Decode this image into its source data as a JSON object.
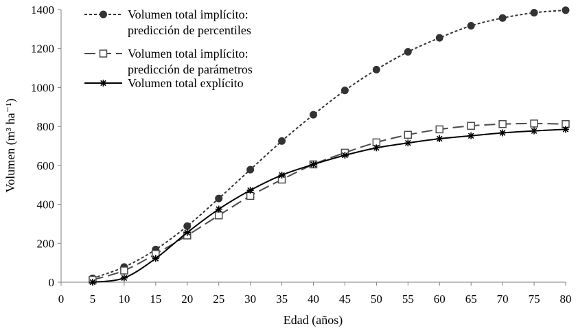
{
  "chart_data": {
    "type": "line",
    "title": "",
    "xlabel": "Edad (años)",
    "ylabel": "Volumen (m³ ha⁻¹)",
    "xlim": [
      0,
      80
    ],
    "ylim": [
      0,
      1400
    ],
    "xticks": [
      0,
      5,
      10,
      15,
      20,
      25,
      30,
      35,
      40,
      45,
      50,
      55,
      60,
      65,
      70,
      75,
      80
    ],
    "yticks": [
      0,
      200,
      400,
      600,
      800,
      1000,
      1200,
      1400
    ],
    "grid": false,
    "legend_position": "top-left",
    "x": [
      5,
      10,
      15,
      20,
      25,
      30,
      35,
      40,
      45,
      50,
      55,
      60,
      65,
      70,
      75,
      80
    ],
    "series": [
      {
        "name": "Volumen total implícito: predicción de percentiles",
        "legend_lines": [
          "Volumen total implícito:",
          "predicción de percentiles"
        ],
        "marker": "circle",
        "line_style": "dotted",
        "color": "#333333",
        "values": [
          20,
          78,
          168,
          288,
          430,
          578,
          725,
          860,
          985,
          1092,
          1183,
          1255,
          1317,
          1357,
          1384,
          1397
        ]
      },
      {
        "name": "Volumen total implícito: predicción de parámetros",
        "legend_lines": [
          "Volumen total implícito:",
          "predicción de parámetros"
        ],
        "marker": "square",
        "line_style": "dashed",
        "color": "#4a4a4a",
        "values": [
          12,
          60,
          145,
          240,
          343,
          443,
          527,
          605,
          665,
          718,
          757,
          785,
          803,
          812,
          815,
          812
        ]
      },
      {
        "name": "Volumen total explícito",
        "legend_lines": [
          "Volumen total explícito"
        ],
        "marker": "star",
        "line_style": "solid",
        "color": "#000000",
        "values": [
          0,
          22,
          122,
          255,
          375,
          472,
          550,
          605,
          652,
          690,
          715,
          737,
          752,
          767,
          777,
          785
        ]
      }
    ]
  }
}
